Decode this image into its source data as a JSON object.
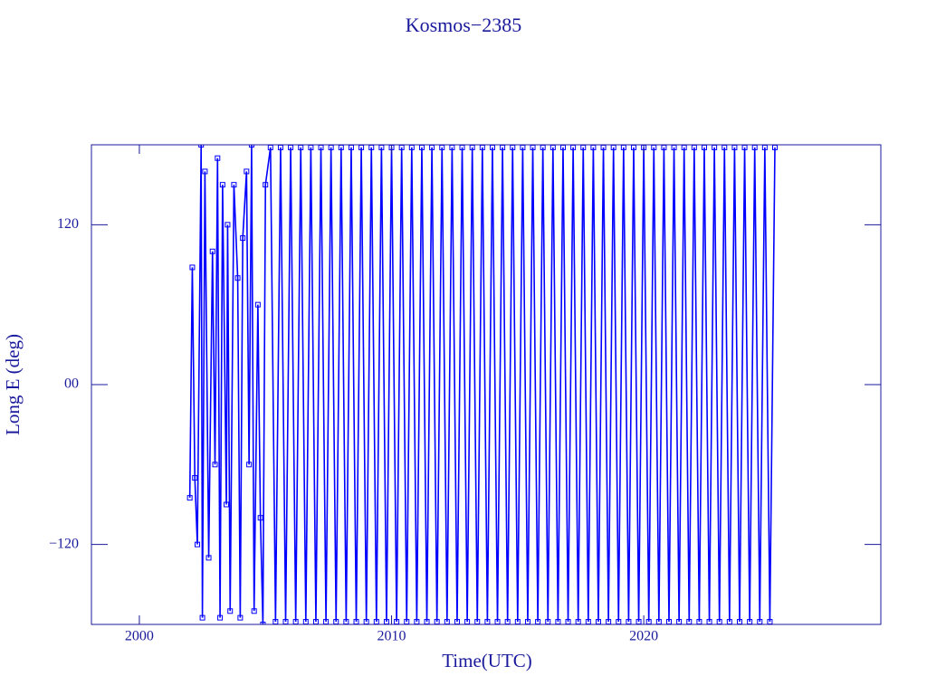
{
  "chart_data": {
    "type": "line",
    "title": "Kosmos−2385",
    "x_label": "Time(UTC)",
    "y_label": "Long E (deg)",
    "xlim": [
      1998.1,
      2029.4
    ],
    "ylim": [
      -180,
      180
    ],
    "xticks": [
      2000,
      2010,
      2020
    ],
    "yticks": [
      {
        "value": -120,
        "label": "−120"
      },
      {
        "value": 0,
        "label": "00"
      },
      120
    ],
    "series": [
      {
        "color": "#0000ff",
        "x": [
          2002.0,
          2002.1,
          2002.2,
          2002.3,
          2002.45,
          2002.5,
          2002.6,
          2002.75,
          2002.9,
          2003.0,
          2003.1,
          2003.2,
          2003.3,
          2003.45,
          2003.5,
          2003.6,
          2003.75,
          2003.9,
          2004.0,
          2004.1,
          2004.25,
          2004.35,
          2004.45,
          2004.55,
          2004.7,
          2004.8,
          2004.9,
          2005.0,
          2005.2,
          2005.4,
          2005.6,
          2005.8,
          2006.0,
          2006.2,
          2006.4,
          2006.6,
          2006.8,
          2007.0,
          2007.2,
          2007.4,
          2007.6,
          2007.8,
          2008.0,
          2008.2,
          2008.4,
          2008.6,
          2008.8,
          2009.0,
          2009.2,
          2009.4,
          2009.6,
          2009.8,
          2010.0,
          2010.2,
          2010.4,
          2010.6,
          2010.8,
          2011.0,
          2011.2,
          2011.4,
          2011.6,
          2011.8,
          2012.0,
          2012.2,
          2012.4,
          2012.6,
          2012.8,
          2013.0,
          2013.2,
          2013.4,
          2013.6,
          2013.8,
          2014.0,
          2014.2,
          2014.4,
          2014.6,
          2014.8,
          2015.0,
          2015.2,
          2015.4,
          2015.6,
          2015.8,
          2016.0,
          2016.2,
          2016.4,
          2016.6,
          2016.8,
          2017.0,
          2017.2,
          2017.4,
          2017.6,
          2017.8,
          2018.0,
          2018.2,
          2018.4,
          2018.6,
          2018.8,
          2019.0,
          2019.2,
          2019.4,
          2019.6,
          2019.8,
          2020.0,
          2020.2,
          2020.4,
          2020.6,
          2020.8,
          2021.0,
          2021.2,
          2021.4,
          2021.6,
          2021.8,
          2022.0,
          2022.2,
          2022.4,
          2022.6,
          2022.8,
          2023.0,
          2023.2,
          2023.4,
          2023.6,
          2023.8,
          2024.0,
          2024.2,
          2024.4,
          2024.6,
          2024.8,
          2025.0,
          2025.2
        ],
        "values": [
          -85,
          88,
          -70,
          -120,
          180,
          -175,
          160,
          -130,
          100,
          -60,
          170,
          -175,
          150,
          -90,
          120,
          -170,
          150,
          80,
          -175,
          110,
          160,
          -60,
          180,
          -170,
          60,
          -100,
          -180,
          150,
          178,
          -178,
          178,
          -178,
          178,
          -178,
          178,
          -178,
          178,
          -178,
          178,
          -178,
          178,
          -178,
          178,
          -178,
          178,
          -178,
          178,
          -178,
          178,
          -178,
          178,
          -178,
          178,
          -178,
          178,
          -178,
          178,
          -178,
          178,
          -178,
          178,
          -178,
          178,
          -178,
          178,
          -178,
          178,
          -178,
          178,
          -178,
          178,
          -178,
          178,
          -178,
          178,
          -178,
          178,
          -178,
          178,
          -178,
          178,
          -178,
          178,
          -178,
          178,
          -178,
          178,
          -178,
          178,
          -178,
          178,
          -178,
          178,
          -178,
          178,
          -178,
          178,
          -178,
          178,
          -178,
          178,
          -178,
          178,
          -178,
          178,
          -178,
          178,
          -178,
          178,
          -178,
          178,
          -178,
          178,
          -178,
          178,
          -178,
          178,
          -178,
          178,
          -178,
          178,
          -178,
          178,
          -178,
          178,
          -178,
          178,
          -178,
          178
        ]
      }
    ]
  }
}
